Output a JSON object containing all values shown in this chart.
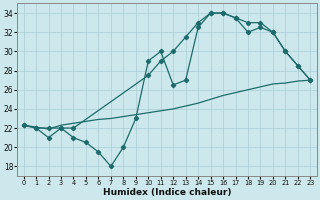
{
  "xlabel": "Humidex (Indice chaleur)",
  "xlim": [
    -0.5,
    23.5
  ],
  "ylim": [
    17,
    35
  ],
  "yticks": [
    18,
    20,
    22,
    24,
    26,
    28,
    30,
    32,
    34
  ],
  "xticks": [
    0,
    1,
    2,
    3,
    4,
    5,
    6,
    7,
    8,
    9,
    10,
    11,
    12,
    13,
    14,
    15,
    16,
    17,
    18,
    19,
    20,
    21,
    22,
    23
  ],
  "background_color": "#cce8ec",
  "grid_color": "#aacdd4",
  "line_color": "#1e6b6b",
  "line1_x": [
    0,
    1,
    2,
    3,
    4,
    5,
    6,
    7,
    8,
    9,
    10,
    11,
    12,
    13,
    14,
    15,
    16,
    17,
    18,
    19,
    20,
    21,
    22,
    23
  ],
  "line1_y": [
    22.3,
    22.0,
    21.0,
    22.0,
    21.0,
    20.5,
    19.5,
    18.0,
    20.0,
    23.0,
    29.0,
    30.0,
    26.5,
    27.0,
    32.5,
    34.0,
    34.0,
    33.5,
    33.0,
    33.0,
    32.0,
    30.0,
    28.5,
    27.0
  ],
  "line2_x": [
    0,
    1,
    2,
    3,
    4,
    10,
    11,
    12,
    13,
    14,
    15,
    16,
    17,
    18,
    19,
    20,
    21,
    22,
    23
  ],
  "line2_y": [
    22.3,
    22.0,
    22.0,
    22.0,
    22.0,
    27.5,
    29.0,
    30.0,
    31.5,
    33.0,
    34.0,
    34.0,
    33.5,
    32.0,
    32.5,
    32.0,
    30.0,
    28.5,
    27.0
  ],
  "line3_x": [
    0,
    1,
    2,
    3,
    4,
    5,
    6,
    7,
    8,
    9,
    10,
    11,
    12,
    13,
    14,
    15,
    16,
    17,
    18,
    19,
    20,
    21,
    22,
    23
  ],
  "line3_y": [
    22.3,
    22.1,
    21.9,
    22.3,
    22.5,
    22.7,
    22.9,
    23.0,
    23.2,
    23.4,
    23.6,
    23.8,
    24.0,
    24.3,
    24.6,
    25.0,
    25.4,
    25.7,
    26.0,
    26.3,
    26.6,
    26.7,
    26.9,
    27.0
  ]
}
